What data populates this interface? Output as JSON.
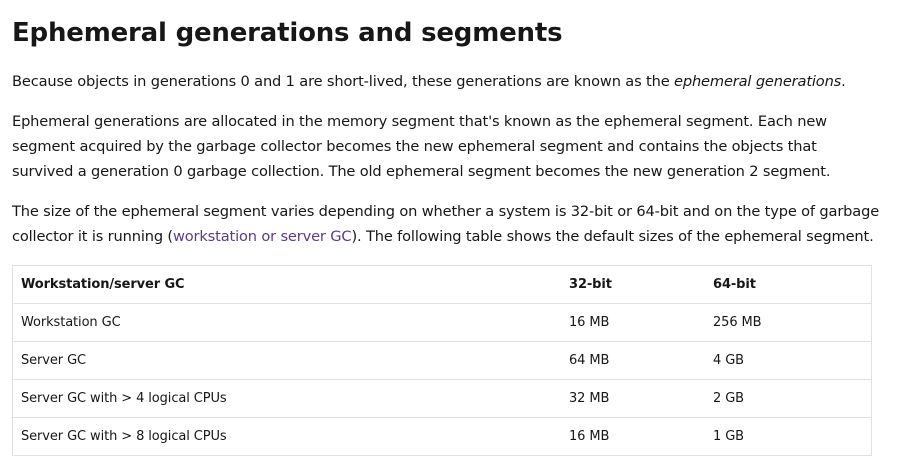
{
  "heading": "Ephemeral generations and segments",
  "paragraph1": {
    "text": "Because objects in generations 0 and 1 are short-lived, these generations are known as the ",
    "emphasis": "ephemeral generations",
    "end": "."
  },
  "paragraph2": "Ephemeral generations are allocated in the memory segment that's known as the ephemeral segment. Each new segment acquired by the garbage collector becomes the new ephemeral segment and contains the objects that survived a generation 0 garbage collection. The old ephemeral segment becomes the new generation 2 segment.",
  "paragraph3": {
    "before": "The size of the ephemeral segment varies depending on whether a system is 32-bit or 64-bit and on the type of garbage collector it is running (",
    "link": "workstation or server GC",
    "after": "). The following table shows the default sizes of the ephemeral segment."
  },
  "table": {
    "headers": [
      "Workstation/server GC",
      "32-bit",
      "64-bit"
    ],
    "rows": [
      [
        "Workstation GC",
        "16 MB",
        "256 MB"
      ],
      [
        "Server GC",
        "64 MB",
        "4 GB"
      ],
      [
        "Server GC with > 4 logical CPUs",
        "32 MB",
        "2 GB"
      ],
      [
        "Server GC with > 8 logical CPUs",
        "16 MB",
        "1 GB"
      ]
    ]
  }
}
